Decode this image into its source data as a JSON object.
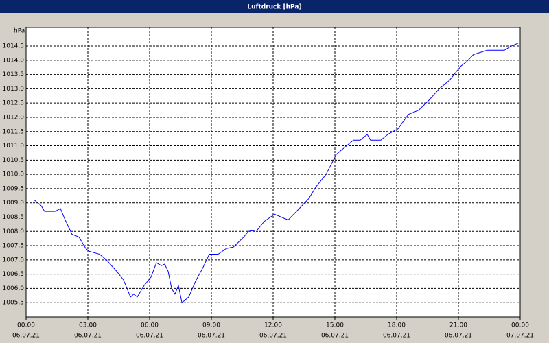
{
  "chart_data": {
    "type": "line",
    "title": "Luftdruck [hPa]",
    "y_label": "hPa",
    "series": [
      {
        "name": "Luftdruck",
        "color": "#0000ff",
        "x": [
          0,
          0.4,
          0.73,
          0.9,
          1.4,
          1.67,
          1.9,
          2.23,
          2.57,
          2.9,
          3.07,
          3.57,
          3.9,
          4.4,
          4.73,
          5.07,
          5.23,
          5.4,
          5.73,
          6.07,
          6.33,
          6.57,
          6.73,
          6.9,
          7.07,
          7.23,
          7.4,
          7.57,
          7.9,
          8.23,
          8.57,
          8.9,
          9.33,
          9.73,
          10.07,
          10.57,
          10.8,
          11.23,
          11.57,
          12.07,
          12.4,
          12.73,
          13.07,
          13.4,
          13.73,
          14.07,
          14.57,
          15.07,
          15.4,
          15.9,
          16.23,
          16.57,
          16.73,
          17.23,
          17.57,
          18.07,
          18.57,
          19.07,
          19.57,
          20.07,
          20.57,
          20.9,
          21.13,
          21.4,
          21.73,
          22.4,
          23.23,
          23.57,
          23.9
        ],
        "values": [
          1009.1,
          1009.1,
          1008.9,
          1008.7,
          1008.7,
          1008.8,
          1008.4,
          1007.9,
          1007.8,
          1007.4,
          1007.3,
          1007.2,
          1007.0,
          1006.6,
          1006.3,
          1005.7,
          1005.8,
          1005.7,
          1006.1,
          1006.4,
          1006.9,
          1006.8,
          1006.85,
          1006.6,
          1006.0,
          1005.8,
          1006.1,
          1005.5,
          1005.7,
          1006.25,
          1006.7,
          1007.2,
          1007.2,
          1007.4,
          1007.45,
          1007.8,
          1008.0,
          1008.05,
          1008.35,
          1008.6,
          1008.5,
          1008.4,
          1008.65,
          1008.9,
          1009.15,
          1009.55,
          1010.0,
          1010.7,
          1010.9,
          1011.2,
          1011.2,
          1011.4,
          1011.2,
          1011.2,
          1011.4,
          1011.6,
          1012.1,
          1012.25,
          1012.6,
          1013.0,
          1013.3,
          1013.6,
          1013.8,
          1013.95,
          1014.2,
          1014.35,
          1014.35,
          1014.5,
          1014.6
        ]
      }
    ],
    "xlim": [
      0,
      24
    ],
    "xticks": [
      {
        "value": 0,
        "label": "00:00",
        "sublabel": "06.07.21"
      },
      {
        "value": 3,
        "label": "03:00",
        "sublabel": "06.07.21"
      },
      {
        "value": 6,
        "label": "06:00",
        "sublabel": "06.07.21"
      },
      {
        "value": 9,
        "label": "09:00",
        "sublabel": "06.07.21"
      },
      {
        "value": 12,
        "label": "12:00",
        "sublabel": "06.07.21"
      },
      {
        "value": 15,
        "label": "15:00",
        "sublabel": "06.07.21"
      },
      {
        "value": 18,
        "label": "18:00",
        "sublabel": "06.07.21"
      },
      {
        "value": 21,
        "label": "21:00",
        "sublabel": "06.07.21"
      },
      {
        "value": 24,
        "label": "00:00",
        "sublabel": "07.07.21"
      }
    ],
    "ylim": [
      1005,
      1015.15
    ],
    "yticks": [
      {
        "value": 1005.5,
        "label": "1005,5"
      },
      {
        "value": 1006,
        "label": "1006,0"
      },
      {
        "value": 1006.5,
        "label": "1006,5"
      },
      {
        "value": 1007,
        "label": "1007,0"
      },
      {
        "value": 1007.5,
        "label": "1007,5"
      },
      {
        "value": 1008,
        "label": "1008,0"
      },
      {
        "value": 1008.5,
        "label": "1008,5"
      },
      {
        "value": 1009,
        "label": "1009,0"
      },
      {
        "value": 1009.5,
        "label": "1009,5"
      },
      {
        "value": 1010,
        "label": "1010,0"
      },
      {
        "value": 1010.5,
        "label": "1010,5"
      },
      {
        "value": 1011,
        "label": "1011,0"
      },
      {
        "value": 1011.5,
        "label": "1011,5"
      },
      {
        "value": 1012,
        "label": "1012,0"
      },
      {
        "value": 1012.5,
        "label": "1012,5"
      },
      {
        "value": 1013,
        "label": "1013,0"
      },
      {
        "value": 1013.5,
        "label": "1013,5"
      },
      {
        "value": 1014,
        "label": "1014,0"
      },
      {
        "value": 1014.5,
        "label": "1014,5"
      }
    ],
    "grid": true
  }
}
